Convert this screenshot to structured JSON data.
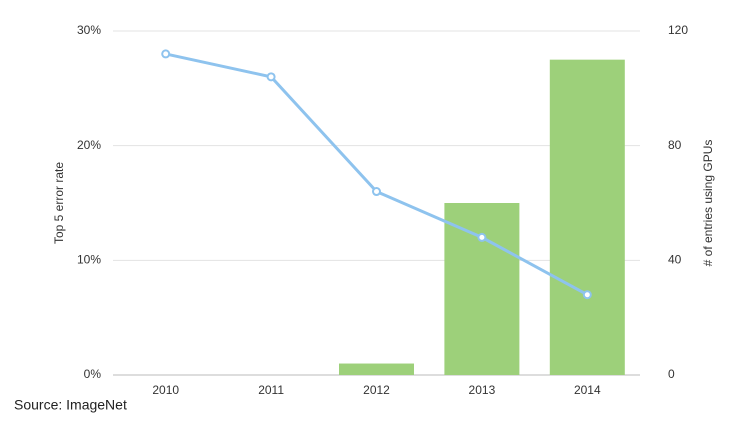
{
  "chart_data": {
    "type": "bar",
    "source": "Source: ImageNet",
    "y_label": "Top 5 error rate",
    "y2_label": "# of entries using GPUs",
    "categories": [
      "2010",
      "2011",
      "2012",
      "2013",
      "2014"
    ],
    "series": [
      {
        "name": "# of entries using GPUs",
        "type": "bar",
        "axis": "y2",
        "color": "#9dd07a",
        "values": [
          0,
          0,
          4,
          60,
          110
        ]
      },
      {
        "name": "Top 5 error rate",
        "type": "line",
        "axis": "y",
        "color": "#8ec3ee",
        "values": [
          28,
          26,
          16,
          12,
          7
        ]
      }
    ],
    "ylim": [
      0,
      30
    ],
    "yticks": [
      {
        "value": 0,
        "label": "0%"
      },
      {
        "value": 10,
        "label": "10%"
      },
      {
        "value": 20,
        "label": "20%"
      },
      {
        "value": 30,
        "label": "30%"
      }
    ],
    "y2lim": [
      0,
      120
    ],
    "y2ticks": [
      0,
      40,
      80,
      120
    ],
    "grid": true
  }
}
